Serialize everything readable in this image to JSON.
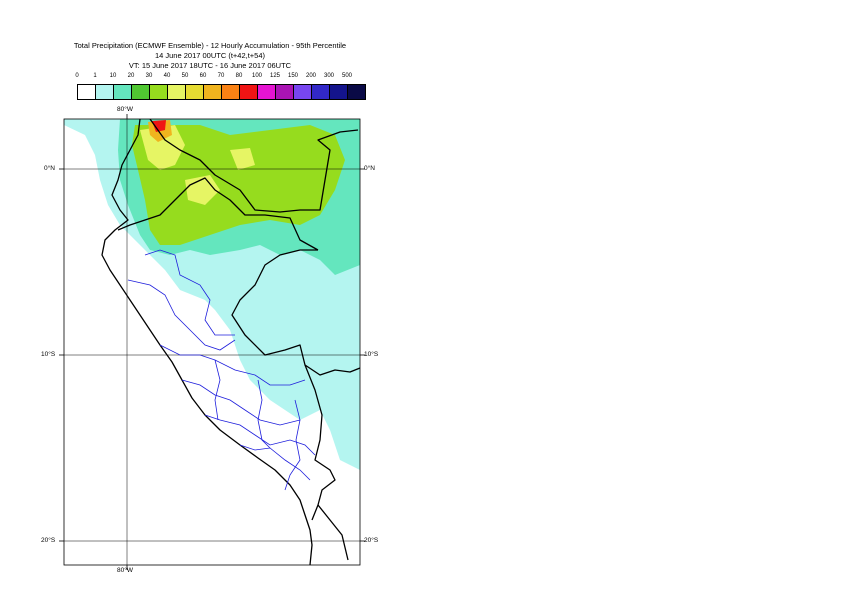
{
  "title": {
    "line1": "Total Precipitation (ECMWF Ensemble) - 12 Hourly Accumulation - 95th Percentile",
    "line2": "14 June 2017 00UTC (t+42,t+54)",
    "line3": "VT: 15 June 2017 18UTC - 16 June 2017 06UTC"
  },
  "legend": {
    "thresholds": [
      "0",
      "1",
      "10",
      "20",
      "30",
      "40",
      "50",
      "60",
      "70",
      "80",
      "100",
      "125",
      "150",
      "200",
      "300",
      "500"
    ],
    "colors": [
      "#ffffff",
      "#b4f5f0",
      "#64e6be",
      "#50c832",
      "#96dc1e",
      "#e6f564",
      "#e6dc32",
      "#f0b41e",
      "#fa8214",
      "#f01414",
      "#e614d2",
      "#aa14b4",
      "#7846f0",
      "#3228c8",
      "#14148c",
      "#0a0a46"
    ]
  },
  "map": {
    "lat_labels": [
      "0°N",
      "10°S",
      "20°S"
    ],
    "lon_labels": [
      "80°W",
      "80°W"
    ],
    "colors": {
      "light_cyan": "#b4f5f0",
      "teal": "#64e6be",
      "green": "#50c832",
      "lime": "#96dc1e",
      "yellow": "#e6f564",
      "orange": "#f0b41e",
      "red": "#f01414",
      "dark_red": "#8c0a0a",
      "black_border": "#000000",
      "blue_border": "#1e1edc"
    }
  }
}
